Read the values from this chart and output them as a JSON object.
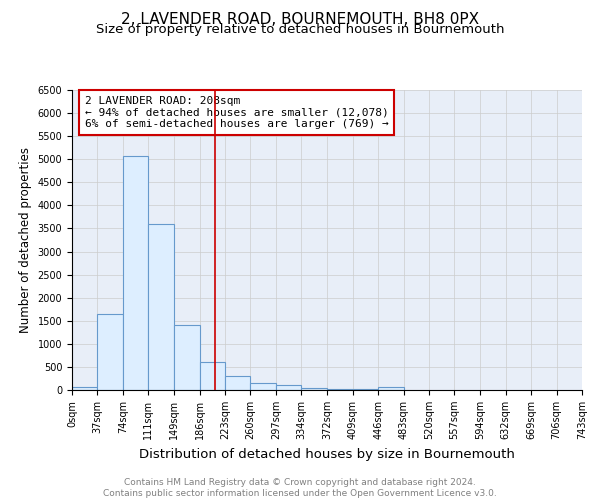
{
  "title": "2, LAVENDER ROAD, BOURNEMOUTH, BH8 0PX",
  "subtitle": "Size of property relative to detached houses in Bournemouth",
  "xlabel": "Distribution of detached houses by size in Bournemouth",
  "ylabel": "Number of detached properties",
  "bin_edges": [
    0,
    37,
    74,
    111,
    149,
    186,
    223,
    260,
    297,
    334,
    372,
    409,
    446,
    483,
    520,
    557,
    594,
    632,
    669,
    706,
    743
  ],
  "bar_heights": [
    75,
    1650,
    5075,
    3600,
    1400,
    610,
    300,
    155,
    115,
    50,
    20,
    15,
    55,
    0,
    0,
    0,
    0,
    0,
    0,
    0
  ],
  "bar_color": "#ddeeff",
  "bar_edge_color": "#6699cc",
  "grid_color": "#cccccc",
  "background_color": "#e8eef8",
  "vline_x": 208,
  "vline_color": "#cc0000",
  "annotation_text": "2 LAVENDER ROAD: 208sqm\n← 94% of detached houses are smaller (12,078)\n6% of semi-detached houses are larger (769) →",
  "annotation_box_color": "#cc0000",
  "ylim": [
    0,
    6500
  ],
  "yticks": [
    0,
    500,
    1000,
    1500,
    2000,
    2500,
    3000,
    3500,
    4000,
    4500,
    5000,
    5500,
    6000,
    6500
  ],
  "footer_text": "Contains HM Land Registry data © Crown copyright and database right 2024.\nContains public sector information licensed under the Open Government Licence v3.0.",
  "title_fontsize": 11,
  "subtitle_fontsize": 9.5,
  "xlabel_fontsize": 9.5,
  "ylabel_fontsize": 8.5,
  "tick_fontsize": 7,
  "annotation_fontsize": 8,
  "footer_fontsize": 6.5
}
